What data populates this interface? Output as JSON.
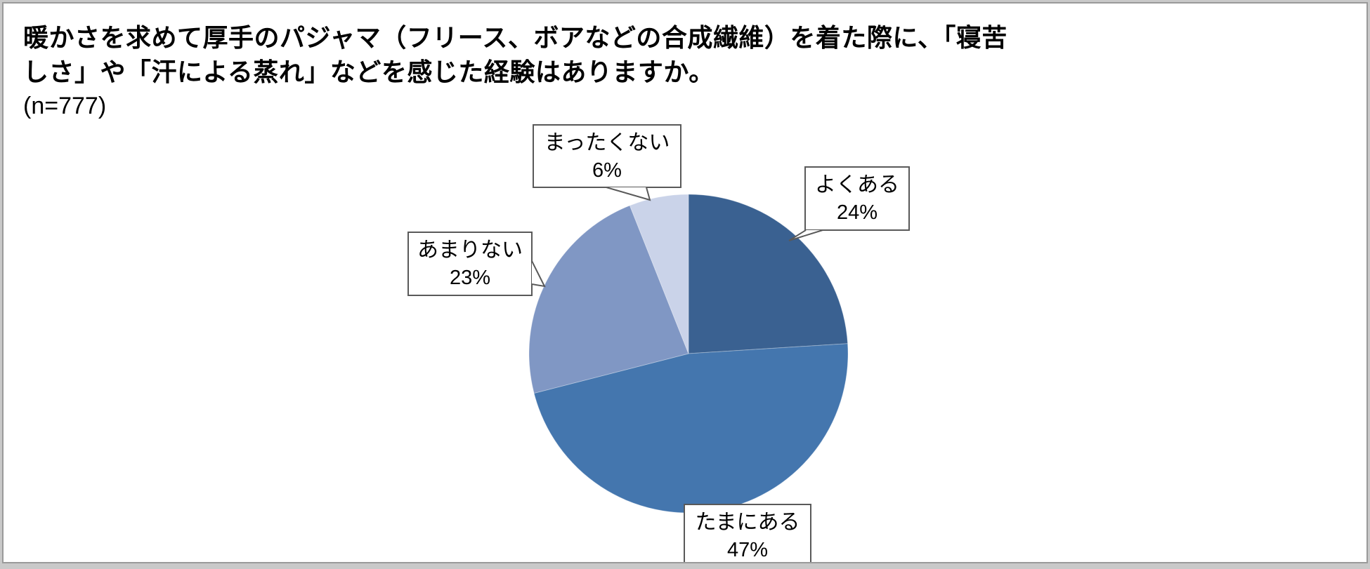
{
  "title": {
    "lines": [
      "暖かさを求めて厚手のパジャマ（フリース、ボアなどの合成繊維）を着た際に、「寝苦",
      "しさ」や「汗による蒸れ」などを感じた経験はありますか。"
    ],
    "sample_size_label": "(n=777)"
  },
  "chart_data": {
    "type": "pie",
    "title": "暖かさを求めて厚手のパジャマ（フリース、ボアなどの合成繊維）を着た際に、「寝苦しさ」や「汗による蒸れ」などを感じた経験はありますか。",
    "n": 777,
    "n_label": "(n=777)",
    "categories": [
      "よくある",
      "たまにある",
      "あまりない",
      "まったくない"
    ],
    "values": [
      24,
      47,
      23,
      6
    ],
    "unit": "%",
    "colors": [
      "#3a6191",
      "#4476ae",
      "#8097c4",
      "#cad3e9"
    ],
    "start_angle": "12-oclock",
    "direction": "clockwise",
    "legend": "none",
    "label_style": "white callout boxes with black 2-line text (category, percent)"
  },
  "callouts": {
    "yoku": {
      "label": "よくある",
      "pct": "24%"
    },
    "tama": {
      "label": "たまにある",
      "pct": "47%"
    },
    "amari": {
      "label": "あまりない",
      "pct": "23%"
    },
    "mattaku": {
      "label": "まったくない",
      "pct": "6%"
    }
  },
  "frame": {
    "outer_color": "#c9c9c9",
    "line_color": "#9a9a9a",
    "background": "#ffffff",
    "callout_border": "#595959"
  }
}
